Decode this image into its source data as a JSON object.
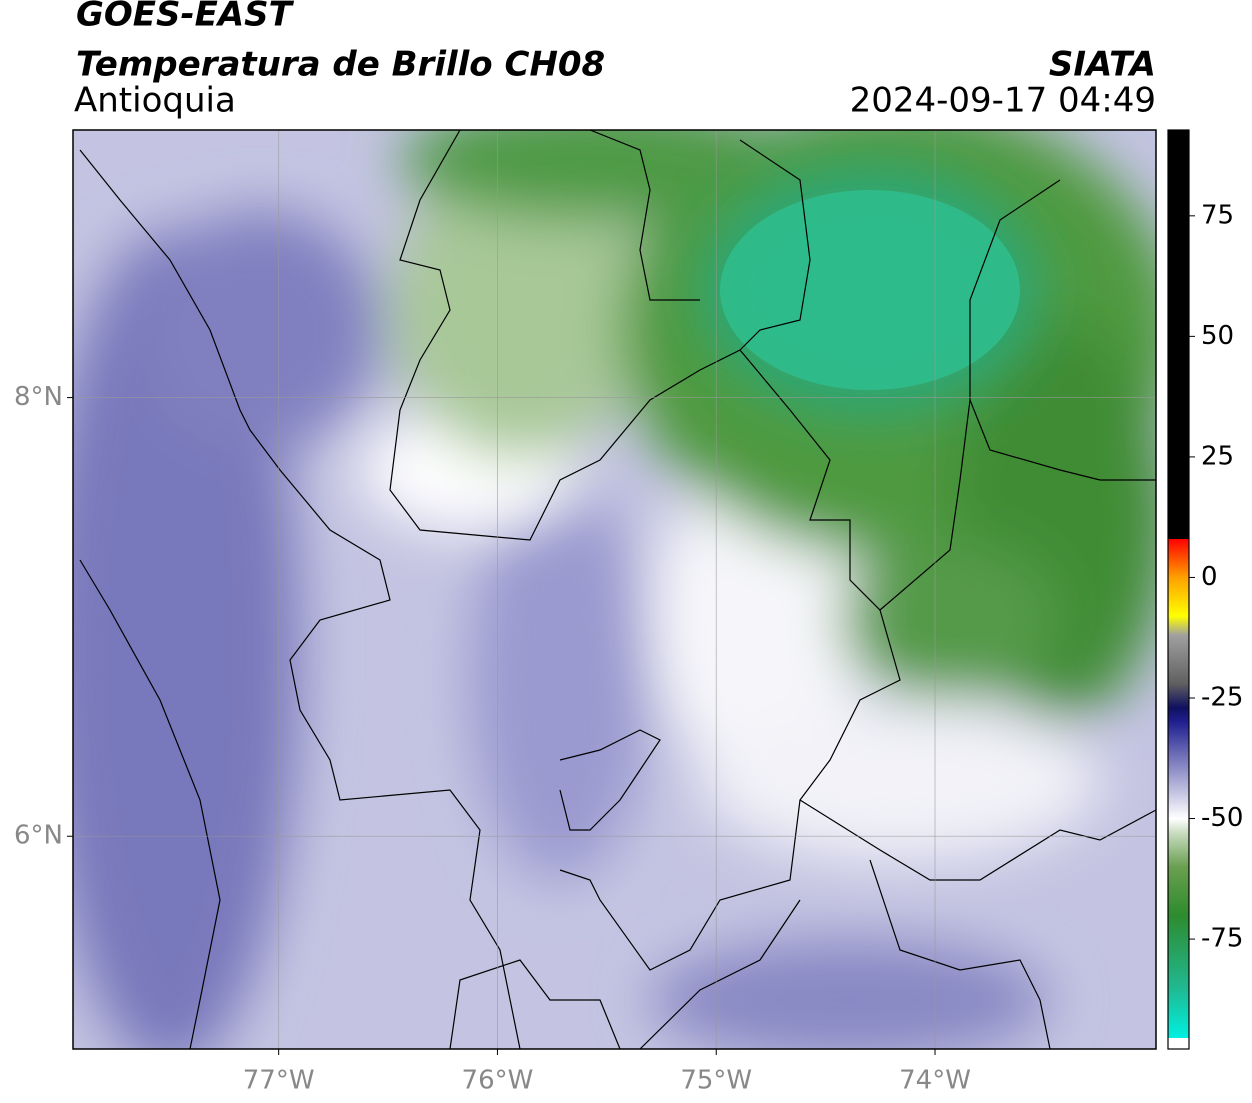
{
  "header": {
    "title": "GOES-EAST",
    "subtitle": "Temperatura de Brillo CH08",
    "region": "Antioquia",
    "source": "SIATA",
    "datetime": "2024-09-17 04:49"
  },
  "map": {
    "xlim": [
      -77.94,
      -72.99
    ],
    "ylim": [
      5.03,
      9.22
    ],
    "xticks": [
      {
        "value": -77,
        "label": "77°W"
      },
      {
        "value": -76,
        "label": "76°W"
      },
      {
        "value": -75,
        "label": "75°W"
      },
      {
        "value": -74,
        "label": "74°W"
      }
    ],
    "yticks": [
      {
        "value": 6,
        "label": "6°N"
      },
      {
        "value": 8,
        "label": "8°N"
      }
    ],
    "grid": true
  },
  "colorbar": {
    "lim": [
      -97.8,
      92.8
    ],
    "ticks": [
      -75,
      -50,
      -25,
      0,
      25,
      50,
      75
    ],
    "colormap": [
      {
        "value": -97.8,
        "color": "#ffffff"
      },
      {
        "value": -95.5,
        "color": "#ffffff"
      },
      {
        "value": -95.5,
        "color": "#00f0e0"
      },
      {
        "value": -85,
        "color": "#20b890"
      },
      {
        "value": -70,
        "color": "#2e8b2e"
      },
      {
        "value": -60,
        "color": "#6aa050"
      },
      {
        "value": -53,
        "color": "#c8dcc0"
      },
      {
        "value": -50,
        "color": "#ffffff"
      },
      {
        "value": -45,
        "color": "#c8c8e4"
      },
      {
        "value": -37,
        "color": "#7070b8"
      },
      {
        "value": -30,
        "color": "#202090"
      },
      {
        "value": -27,
        "color": "#101060"
      },
      {
        "value": -22,
        "color": "#606060"
      },
      {
        "value": -12,
        "color": "#a0a0a0"
      },
      {
        "value": -8,
        "color": "#ffff00"
      },
      {
        "value": 0,
        "color": "#ffa000"
      },
      {
        "value": 8,
        "color": "#ff0000"
      },
      {
        "value": 8,
        "color": "#000000"
      },
      {
        "value": 92.8,
        "color": "#000000"
      }
    ]
  }
}
